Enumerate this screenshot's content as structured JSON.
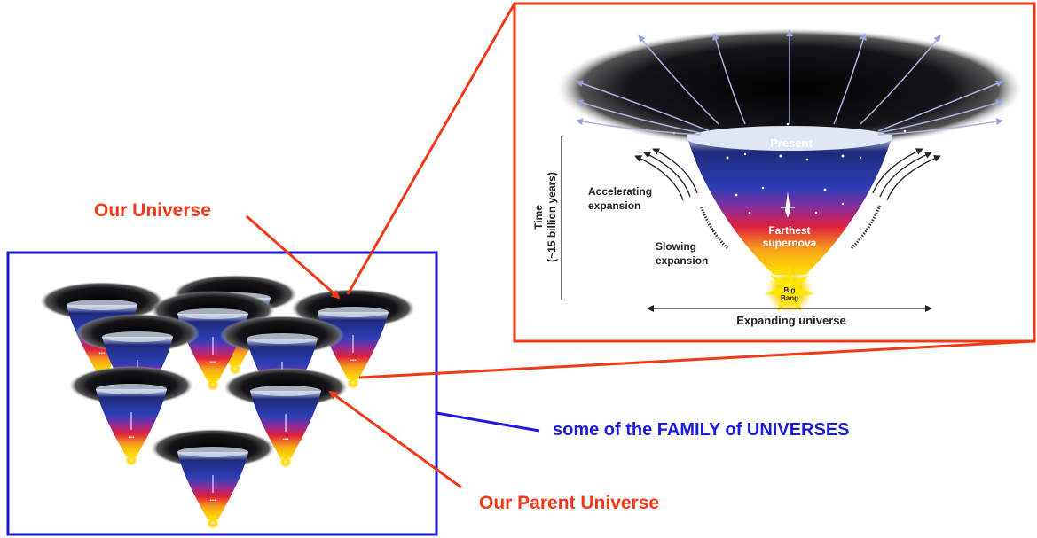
{
  "labels": {
    "our_universe": "Our Universe",
    "family": "some of the FAMILY of UNIVERSES",
    "parent": "Our Parent Universe"
  },
  "inset": {
    "present": "Present",
    "accelerating_1": "Accelerating",
    "accelerating_2": "expansion",
    "slowing_1": "Slowing",
    "slowing_2": "expansion",
    "farthest_1": "Farthest",
    "farthest_2": "supernova",
    "big_1": "Big",
    "big_2": "Bang",
    "expanding": "Expanding universe",
    "time_1": "Time",
    "time_2": "(~15 billion years)"
  },
  "colors": {
    "red": "#f03a17",
    "blue": "#1a1adb",
    "label_red": "#f03a17",
    "label_blue": "#1a1adb"
  }
}
